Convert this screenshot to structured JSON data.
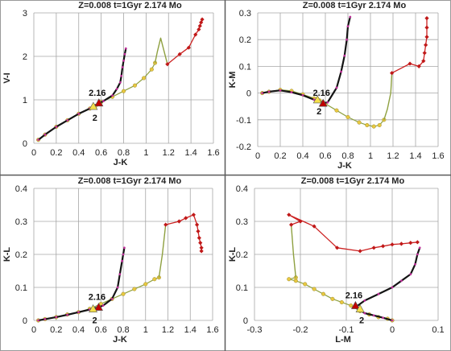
{
  "colors": {
    "frame": "#9a9a9a",
    "divider": "#5a5a5a",
    "grid": "#a6a6a6",
    "tick_text": "#222222",
    "title": "#222222",
    "black_track": "#141414",
    "magenta_dot": "#c0309a",
    "olive_track": "#8ea040",
    "yellow_dot": "#e8c840",
    "red_track": "#cc2222",
    "red_dot": "#c01818",
    "marker_red": "#c00000",
    "marker_yellow": "#f5e04a"
  },
  "chart_data": [
    {
      "id": "tl",
      "type": "line",
      "title": "Z=0.008  t=1Gyr  2.174 Mo",
      "xlabel": "J-K",
      "ylabel": "V-I",
      "xlim": [
        0,
        1.6
      ],
      "ylim": [
        0,
        3
      ],
      "xticks": [
        "0",
        "0.2",
        "0.4",
        "0.6",
        "0.8",
        "1",
        "1.2",
        "1.4",
        "1.6"
      ],
      "xtick_values": [
        0,
        0.2,
        0.4,
        0.6,
        0.8,
        1.0,
        1.2,
        1.4,
        1.6
      ],
      "yticks": [
        "0",
        "1",
        "2",
        "3"
      ],
      "ytick_values": [
        0,
        1,
        2,
        3
      ],
      "grid": true,
      "series": [
        {
          "style": "yellow",
          "points": [
            [
              0.04,
              0.08
            ],
            [
              0.1,
              0.2
            ],
            [
              0.2,
              0.38
            ],
            [
              0.3,
              0.53
            ],
            [
              0.4,
              0.68
            ],
            [
              0.5,
              0.8
            ],
            [
              0.55,
              0.86
            ],
            [
              0.6,
              0.95
            ],
            [
              0.7,
              1.07
            ],
            [
              0.8,
              1.2
            ],
            [
              0.9,
              1.33
            ],
            [
              0.98,
              1.5
            ],
            [
              1.05,
              1.7
            ],
            [
              1.08,
              1.85
            ]
          ]
        },
        {
          "style": "black",
          "points": [
            [
              0.04,
              0.08
            ],
            [
              0.1,
              0.2
            ],
            [
              0.2,
              0.38
            ],
            [
              0.3,
              0.53
            ],
            [
              0.4,
              0.68
            ],
            [
              0.5,
              0.8
            ],
            [
              0.58,
              0.92
            ],
            [
              0.62,
              0.97
            ],
            [
              0.7,
              1.1
            ],
            [
              0.74,
              1.25
            ],
            [
              0.77,
              1.4
            ],
            [
              0.78,
              1.55
            ],
            [
              0.79,
              1.75
            ],
            [
              0.8,
              1.9
            ],
            [
              0.81,
              2.05
            ],
            [
              0.82,
              2.18
            ]
          ]
        },
        {
          "style": "olive",
          "points": [
            [
              1.08,
              1.85
            ],
            [
              1.1,
              2.1
            ],
            [
              1.13,
              2.42
            ],
            [
              1.19,
              1.82
            ]
          ]
        },
        {
          "style": "red",
          "points": [
            [
              1.19,
              1.82
            ],
            [
              1.3,
              2.05
            ],
            [
              1.38,
              2.2
            ],
            [
              1.44,
              2.5
            ],
            [
              1.47,
              2.62
            ],
            [
              1.48,
              2.7
            ],
            [
              1.49,
              2.78
            ],
            [
              1.5,
              2.85
            ]
          ]
        }
      ],
      "markers": [
        {
          "label": "2.16",
          "x": 0.58,
          "y": 0.93,
          "color": "red"
        },
        {
          "label": "2",
          "x": 0.53,
          "y": 0.85,
          "color": "yellow"
        }
      ]
    },
    {
      "id": "tr",
      "type": "line",
      "title": "Z=0.008  t=1Gyr  2.174 Mo",
      "xlabel": "J-K",
      "ylabel": "K-M",
      "xlim": [
        0,
        1.6
      ],
      "ylim": [
        -0.2,
        0.3
      ],
      "xticks": [
        "0",
        "0.2",
        "0.4",
        "0.6",
        "0.8",
        "1",
        "1.2",
        "1.4",
        "1.6"
      ],
      "xtick_values": [
        0,
        0.2,
        0.4,
        0.6,
        0.8,
        1.0,
        1.2,
        1.4,
        1.6
      ],
      "yticks": [
        "-0.2",
        "-0.1",
        "0",
        "0.1",
        "0.2",
        "0.3"
      ],
      "ytick_values": [
        -0.2,
        -0.1,
        0,
        0.1,
        0.2,
        0.3
      ],
      "grid": true,
      "series": [
        {
          "style": "yellow",
          "points": [
            [
              0.04,
              0.0
            ],
            [
              0.1,
              0.005
            ],
            [
              0.2,
              0.012
            ],
            [
              0.3,
              0.008
            ],
            [
              0.4,
              -0.005
            ],
            [
              0.5,
              -0.02
            ],
            [
              0.55,
              -0.028
            ],
            [
              0.6,
              -0.04
            ],
            [
              0.7,
              -0.065
            ],
            [
              0.8,
              -0.09
            ],
            [
              0.9,
              -0.11
            ],
            [
              0.97,
              -0.12
            ],
            [
              1.03,
              -0.125
            ],
            [
              1.08,
              -0.12
            ],
            [
              1.12,
              -0.1
            ]
          ]
        },
        {
          "style": "black",
          "points": [
            [
              0.04,
              0.0
            ],
            [
              0.1,
              0.005
            ],
            [
              0.2,
              0.01
            ],
            [
              0.3,
              0.003
            ],
            [
              0.4,
              -0.008
            ],
            [
              0.5,
              -0.025
            ],
            [
              0.58,
              -0.038
            ],
            [
              0.62,
              -0.035
            ],
            [
              0.7,
              0.02
            ],
            [
              0.74,
              0.08
            ],
            [
              0.77,
              0.14
            ],
            [
              0.79,
              0.2
            ],
            [
              0.8,
              0.25
            ],
            [
              0.82,
              0.285
            ]
          ]
        },
        {
          "style": "olive",
          "points": [
            [
              1.12,
              -0.1
            ],
            [
              1.15,
              -0.06
            ],
            [
              1.18,
              0.0
            ],
            [
              1.19,
              0.075
            ]
          ]
        },
        {
          "style": "red",
          "points": [
            [
              1.19,
              0.075
            ],
            [
              1.35,
              0.11
            ],
            [
              1.43,
              0.1
            ],
            [
              1.47,
              0.12
            ],
            [
              1.48,
              0.15
            ],
            [
              1.49,
              0.18
            ],
            [
              1.5,
              0.21
            ],
            [
              1.5,
              0.245
            ],
            [
              1.5,
              0.28
            ]
          ]
        }
      ],
      "markers": [
        {
          "label": "2.16",
          "x": 0.58,
          "y": -0.038,
          "color": "red"
        },
        {
          "label": "2",
          "x": 0.53,
          "y": -0.025,
          "color": "yellow"
        }
      ]
    },
    {
      "id": "bl",
      "type": "line",
      "title": "Z=0.008  t=1Gyr  2.174 Mo",
      "xlabel": "J-K",
      "ylabel": "K-L",
      "xlim": [
        0,
        1.6
      ],
      "ylim": [
        0,
        0.4
      ],
      "xticks": [
        "0",
        "0.2",
        "0.4",
        "0.6",
        "0.8",
        "1",
        "1.2",
        "1.4",
        "1.6"
      ],
      "xtick_values": [
        0,
        0.2,
        0.4,
        0.6,
        0.8,
        1.0,
        1.2,
        1.4,
        1.6
      ],
      "yticks": [
        "0",
        "0.1",
        "0.2",
        "0.3",
        "0.4"
      ],
      "ytick_values": [
        0,
        0.1,
        0.2,
        0.3,
        0.4
      ],
      "grid": true,
      "series": [
        {
          "style": "yellow",
          "points": [
            [
              0.04,
              0.0
            ],
            [
              0.1,
              0.004
            ],
            [
              0.2,
              0.01
            ],
            [
              0.3,
              0.018
            ],
            [
              0.4,
              0.025
            ],
            [
              0.5,
              0.035
            ],
            [
              0.6,
              0.05
            ],
            [
              0.7,
              0.065
            ],
            [
              0.8,
              0.08
            ],
            [
              0.9,
              0.095
            ],
            [
              1.0,
              0.11
            ],
            [
              1.08,
              0.125
            ],
            [
              1.12,
              0.13
            ]
          ]
        },
        {
          "style": "black",
          "points": [
            [
              0.04,
              0.0
            ],
            [
              0.1,
              0.004
            ],
            [
              0.2,
              0.01
            ],
            [
              0.3,
              0.017
            ],
            [
              0.4,
              0.025
            ],
            [
              0.5,
              0.033
            ],
            [
              0.58,
              0.04
            ],
            [
              0.62,
              0.045
            ],
            [
              0.7,
              0.065
            ],
            [
              0.75,
              0.1
            ],
            [
              0.77,
              0.14
            ],
            [
              0.79,
              0.18
            ],
            [
              0.8,
              0.2
            ],
            [
              0.81,
              0.22
            ]
          ]
        },
        {
          "style": "olive",
          "points": [
            [
              1.12,
              0.13
            ],
            [
              1.15,
              0.2
            ],
            [
              1.18,
              0.29
            ]
          ]
        },
        {
          "style": "red",
          "points": [
            [
              1.18,
              0.29
            ],
            [
              1.3,
              0.3
            ],
            [
              1.36,
              0.31
            ],
            [
              1.43,
              0.32
            ],
            [
              1.46,
              0.29
            ],
            [
              1.47,
              0.27
            ],
            [
              1.48,
              0.25
            ],
            [
              1.49,
              0.235
            ],
            [
              1.5,
              0.22
            ],
            [
              1.5,
              0.21
            ]
          ]
        }
      ],
      "markers": [
        {
          "label": "2.16",
          "x": 0.58,
          "y": 0.04,
          "color": "red"
        },
        {
          "label": "2",
          "x": 0.53,
          "y": 0.035,
          "color": "yellow"
        }
      ]
    },
    {
      "id": "br",
      "type": "line",
      "title": "Z=0.008  t=1Gyr  2.174 Mo",
      "xlabel": "L-M",
      "ylabel": "K-L",
      "xlim": [
        -0.3,
        0.1
      ],
      "ylim": [
        0,
        0.4
      ],
      "xticks": [
        "-0.3",
        "-0.2",
        "-0.1",
        "0",
        "0.1"
      ],
      "xtick_values": [
        -0.3,
        -0.2,
        -0.1,
        0,
        0.1
      ],
      "yticks": [
        "0",
        "0.1",
        "0.2",
        "0.3",
        "0.4"
      ],
      "ytick_values": [
        0,
        0.1,
        0.2,
        0.3,
        0.4
      ],
      "grid": true,
      "series": [
        {
          "style": "yellow",
          "points": [
            [
              0.0,
              0.0
            ],
            [
              -0.01,
              0.005
            ],
            [
              -0.03,
              0.01
            ],
            [
              -0.05,
              0.018
            ],
            [
              -0.07,
              0.028
            ],
            [
              -0.09,
              0.045
            ],
            [
              -0.11,
              0.055
            ],
            [
              -0.13,
              0.065
            ],
            [
              -0.15,
              0.08
            ],
            [
              -0.17,
              0.095
            ],
            [
              -0.19,
              0.11
            ],
            [
              -0.21,
              0.12
            ],
            [
              -0.225,
              0.125
            ],
            [
              -0.21,
              0.13
            ]
          ]
        },
        {
          "style": "black",
          "points": [
            [
              0.0,
              0.0
            ],
            [
              -0.02,
              0.008
            ],
            [
              -0.04,
              0.015
            ],
            [
              -0.06,
              0.022
            ],
            [
              -0.08,
              0.04
            ],
            [
              -0.06,
              0.06
            ],
            [
              -0.03,
              0.08
            ],
            [
              0.0,
              0.1
            ],
            [
              0.02,
              0.12
            ],
            [
              0.04,
              0.14
            ],
            [
              0.05,
              0.17
            ],
            [
              0.055,
              0.2
            ],
            [
              0.06,
              0.22
            ]
          ]
        },
        {
          "style": "olive",
          "points": [
            [
              -0.21,
              0.13
            ],
            [
              -0.215,
              0.2
            ],
            [
              -0.22,
              0.29
            ]
          ]
        },
        {
          "style": "red",
          "points": [
            [
              -0.22,
              0.29
            ],
            [
              -0.2,
              0.3
            ],
            [
              -0.225,
              0.32
            ],
            [
              -0.17,
              0.285
            ],
            [
              -0.12,
              0.22
            ],
            [
              -0.07,
              0.21
            ],
            [
              -0.04,
              0.22
            ],
            [
              -0.02,
              0.225
            ],
            [
              0.0,
              0.23
            ],
            [
              0.02,
              0.232
            ],
            [
              0.04,
              0.235
            ],
            [
              0.055,
              0.237
            ]
          ]
        }
      ],
      "markers": [
        {
          "label": "2.16",
          "x": -0.08,
          "y": 0.045,
          "color": "red"
        },
        {
          "label": "2",
          "x": -0.07,
          "y": 0.035,
          "color": "yellow"
        }
      ]
    }
  ]
}
